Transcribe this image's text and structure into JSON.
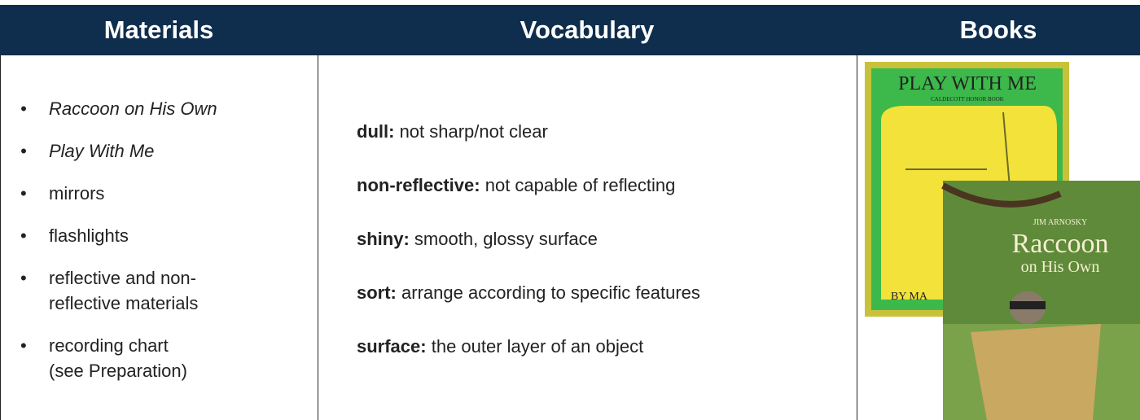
{
  "table": {
    "headers": [
      "Materials",
      "Vocabulary",
      "Books"
    ],
    "materials": [
      {
        "lines": [
          "Raccoon on His Own"
        ],
        "italic": true
      },
      {
        "lines": [
          "Play With Me"
        ],
        "italic": true
      },
      {
        "lines": [
          "mirrors"
        ],
        "italic": false
      },
      {
        "lines": [
          "flashlights"
        ],
        "italic": false
      },
      {
        "lines": [
          "reflective and non-",
          "reflective materials"
        ],
        "italic": false
      },
      {
        "lines": [
          "recording chart",
          "(see Preparation)"
        ],
        "italic": false
      }
    ],
    "vocabulary": [
      {
        "term": "dull:",
        "definition": "not sharp/not clear"
      },
      {
        "term": "non-reflective:",
        "definition": "not capable of reflecting"
      },
      {
        "term": "shiny:",
        "definition": "smooth, glossy surface"
      },
      {
        "term": "sort:",
        "definition": "arrange according to specific features"
      },
      {
        "term": "surface:",
        "definition": "the outer layer of an object"
      }
    ],
    "books": [
      {
        "title": "PLAY WITH ME",
        "subtitle": "CALDECOTT HONOR BOOK",
        "author": "BY MA"
      },
      {
        "author": "JIM ARNOSKY",
        "title_line1": "Raccoon",
        "title_line2": "on His Own"
      }
    ]
  }
}
